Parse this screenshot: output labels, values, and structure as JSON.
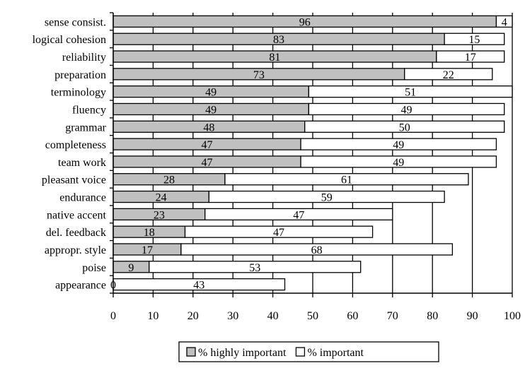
{
  "chart_data": {
    "type": "bar",
    "orientation": "horizontal",
    "stacked": true,
    "categories": [
      "sense consist.",
      "logical cohesion",
      "reliability",
      "preparation",
      "terminology",
      "fluency",
      "grammar",
      "completeness",
      "team work",
      "pleasant voice",
      "endurance",
      "native accent",
      "del. feedback",
      "appropr. style",
      "poise",
      "appearance"
    ],
    "series": [
      {
        "name": "% highly important",
        "color": "#c0c0c0",
        "values": [
          96,
          83,
          81,
          73,
          49,
          49,
          48,
          47,
          47,
          28,
          24,
          23,
          18,
          17,
          9,
          0
        ]
      },
      {
        "name": "% important",
        "color": "#ffffff",
        "values": [
          4,
          15,
          17,
          22,
          51,
          49,
          50,
          49,
          49,
          61,
          59,
          47,
          47,
          68,
          53,
          43
        ]
      }
    ],
    "xlim": [
      0,
      100
    ],
    "x_ticks": [
      0,
      10,
      20,
      30,
      40,
      50,
      60,
      70,
      80,
      90,
      100
    ],
    "title": "",
    "xlabel": "",
    "ylabel": "",
    "grid": "vertical",
    "legend": "bottom-center"
  }
}
